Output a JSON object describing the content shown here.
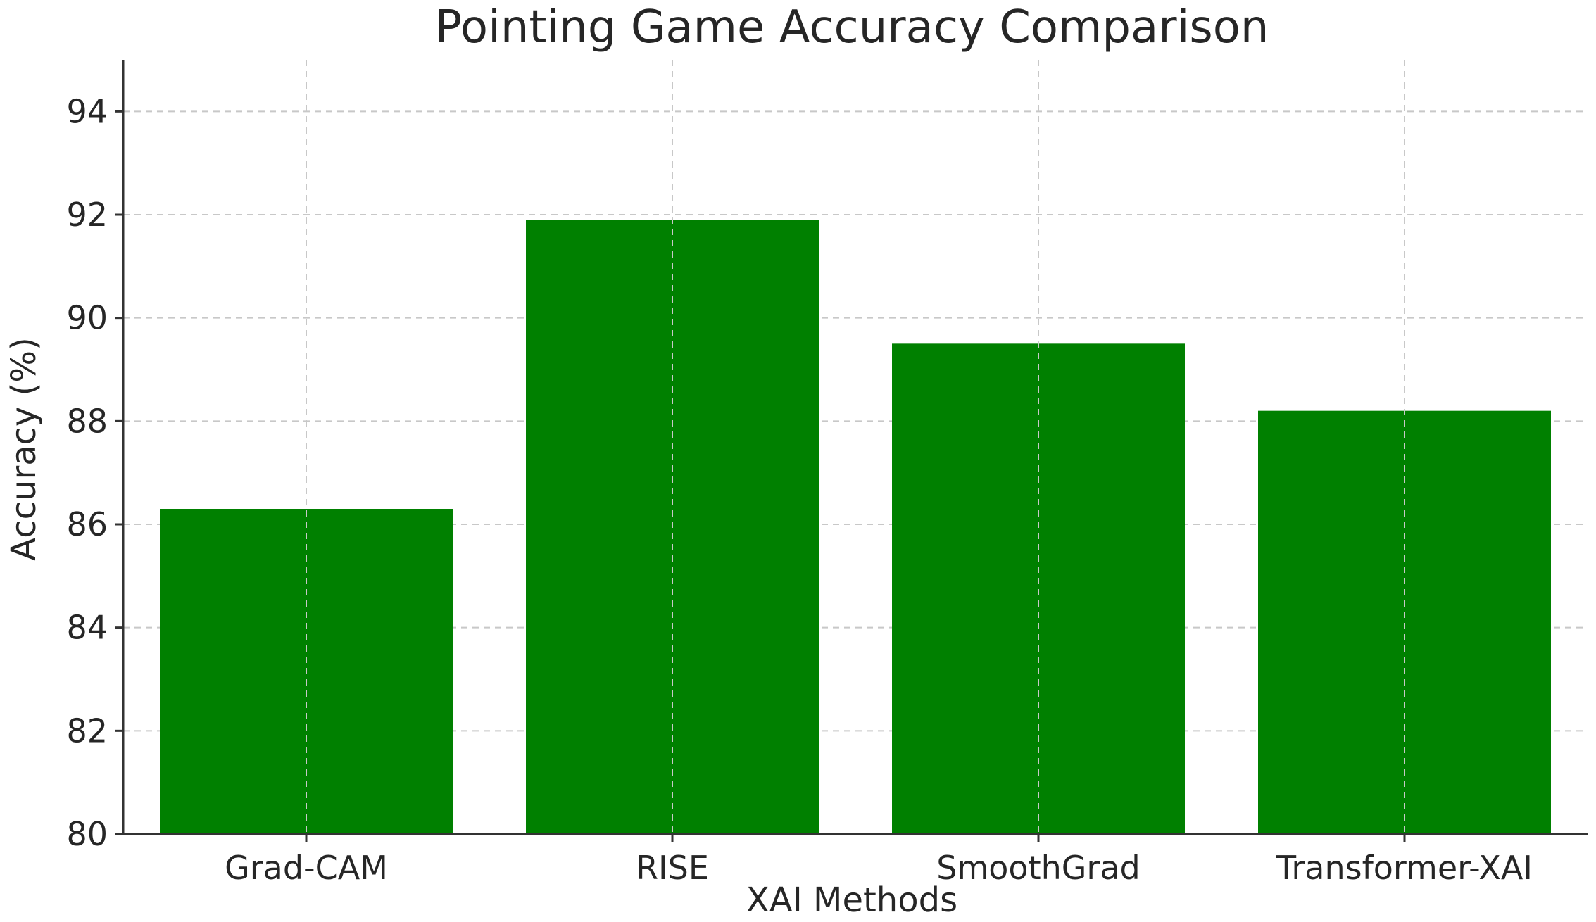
{
  "chart_data": {
    "type": "bar",
    "title": "Pointing Game Accuracy Comparison",
    "xlabel": "XAI Methods",
    "ylabel": "Accuracy (%)",
    "categories": [
      "Grad-CAM",
      "RISE",
      "SmoothGrad",
      "Transformer-XAI"
    ],
    "values": [
      86.3,
      91.9,
      89.5,
      88.2
    ],
    "ylim": [
      80,
      95
    ],
    "yticks": [
      80,
      82,
      84,
      86,
      88,
      90,
      92,
      94
    ],
    "grid": true,
    "bar_color": "#008000"
  }
}
